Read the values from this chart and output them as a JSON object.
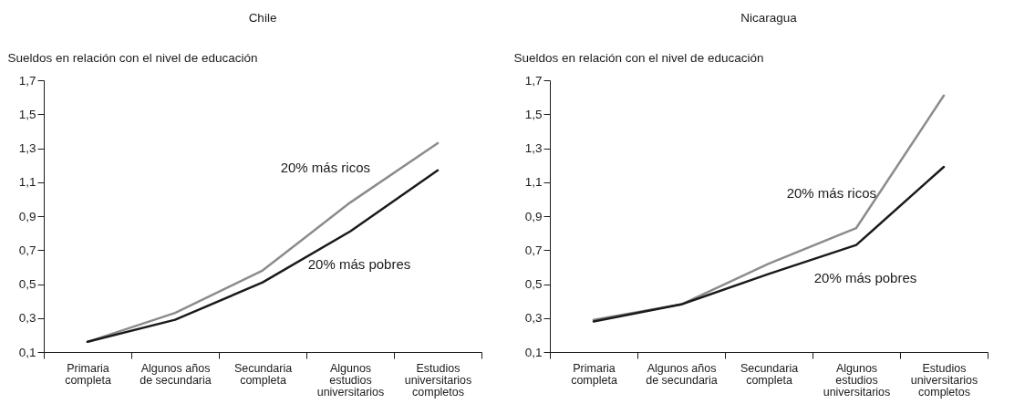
{
  "chart_data": [
    {
      "type": "line",
      "title": "Chile",
      "ylabel": "Sueldos en relación con el nivel de educación",
      "categories": [
        "Primaria completa",
        "Algunos años de secundaria",
        "Secundaria completa",
        "Algunos estudios universitarios",
        "Estudios universitarios completos"
      ],
      "series": [
        {
          "name": "20% más ricos",
          "color": "#8c8c8c",
          "values": [
            0.16,
            0.33,
            0.58,
            0.98,
            1.33
          ]
        },
        {
          "name": "20% más pobres",
          "color": "#1a1a1a",
          "values": [
            0.16,
            0.29,
            0.51,
            0.81,
            1.17
          ]
        }
      ],
      "ylim": [
        0.1,
        1.7
      ],
      "yticks": [
        {
          "value": 0.1,
          "label": "0,1"
        },
        {
          "value": 0.3,
          "label": "0,3"
        },
        {
          "value": 0.5,
          "label": "0,5"
        },
        {
          "value": 0.7,
          "label": "0,7"
        },
        {
          "value": 0.9,
          "label": "0,9"
        },
        {
          "value": 1.1,
          "label": "1,1"
        },
        {
          "value": 1.3,
          "label": "1,3"
        },
        {
          "value": 1.5,
          "label": "1,5"
        },
        {
          "value": 1.7,
          "label": "1,7"
        }
      ],
      "grid": false,
      "legend": false,
      "marker": "none",
      "line_style": "solid"
    },
    {
      "type": "line",
      "title": "Nicaragua",
      "ylabel": "Sueldos en relación con el nivel de educación",
      "categories": [
        "Primaria completa",
        "Algunos años de secundaria",
        "Secundaria completa",
        "Algunos estudios universitarios",
        "Estudios universitarios completos"
      ],
      "series": [
        {
          "name": "20% más ricos",
          "color": "#8c8c8c",
          "values": [
            0.29,
            0.38,
            0.62,
            0.83,
            1.61
          ]
        },
        {
          "name": "20% más pobres",
          "color": "#1a1a1a",
          "values": [
            0.28,
            0.38,
            0.56,
            0.73,
            1.19
          ]
        }
      ],
      "ylim": [
        0.1,
        1.7
      ],
      "yticks": [
        {
          "value": 0.1,
          "label": "0,1"
        },
        {
          "value": 0.3,
          "label": "0,3"
        },
        {
          "value": 0.5,
          "label": "0,5"
        },
        {
          "value": 0.7,
          "label": "0,7"
        },
        {
          "value": 0.9,
          "label": "0,9"
        },
        {
          "value": 1.1,
          "label": "1,1"
        },
        {
          "value": 1.3,
          "label": "1,3"
        },
        {
          "value": 1.5,
          "label": "1,5"
        },
        {
          "value": 1.7,
          "label": "1,7"
        }
      ],
      "grid": false,
      "legend": false,
      "marker": "none",
      "line_style": "solid"
    }
  ]
}
